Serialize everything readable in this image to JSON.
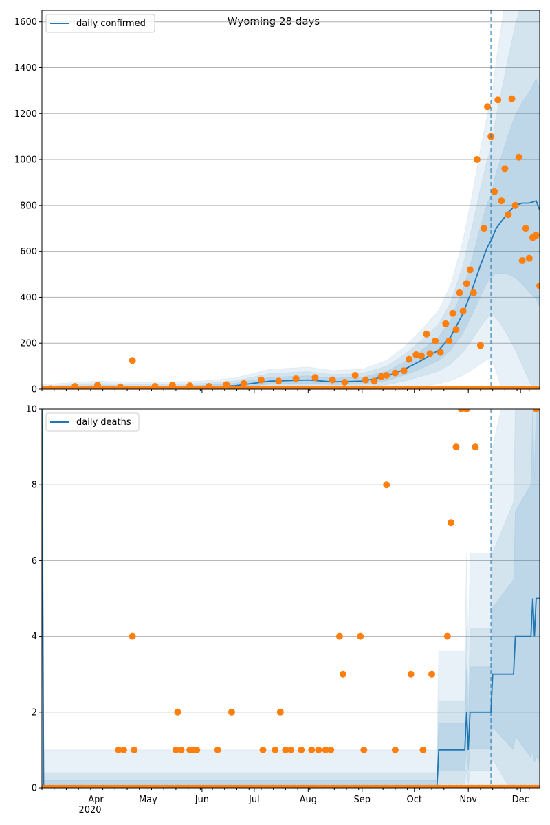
{
  "figure": {
    "title": "Wyoming 28 days",
    "year_label": "2020",
    "colors": {
      "model": "#1f77b4",
      "observed": "#ff7f0e",
      "grid": "#b0b0b0"
    }
  },
  "chart_data": [
    {
      "type": "line",
      "panel": "daily confirmed",
      "legend": [
        "daily confirmed"
      ],
      "legend_position": "top-left",
      "x_range": [
        "2020-03-01",
        "2020-12-12"
      ],
      "ylim": [
        0,
        1650
      ],
      "yticks": [
        0,
        200,
        400,
        600,
        800,
        1000,
        1200,
        1400,
        1600
      ],
      "grid": "horizontal",
      "forecast_start": "2020-11-14",
      "model_line": {
        "name": "daily confirmed",
        "x": [
          "2020-03-01",
          "2020-04-01",
          "2020-05-01",
          "2020-06-01",
          "2020-06-20",
          "2020-07-10",
          "2020-08-01",
          "2020-08-15",
          "2020-09-01",
          "2020-09-15",
          "2020-09-25",
          "2020-10-05",
          "2020-10-15",
          "2020-10-22",
          "2020-10-29",
          "2020-11-03",
          "2020-11-08",
          "2020-11-12",
          "2020-11-14",
          "2020-11-17",
          "2020-11-20",
          "2020-11-24",
          "2020-11-28",
          "2020-12-02",
          "2020-12-06",
          "2020-12-10",
          "2020-12-12"
        ],
        "y": [
          0,
          8,
          5,
          8,
          15,
          35,
          40,
          32,
          35,
          55,
          85,
          125,
          170,
          230,
          330,
          430,
          540,
          620,
          645,
          700,
          730,
          770,
          800,
          810,
          810,
          820,
          780
        ]
      },
      "observed_points": {
        "name": "observed",
        "x": [
          "2020-03-06",
          "2020-03-20",
          "2020-04-02",
          "2020-04-15",
          "2020-04-22",
          "2020-05-05",
          "2020-05-15",
          "2020-05-25",
          "2020-06-05",
          "2020-06-15",
          "2020-06-25",
          "2020-07-05",
          "2020-07-15",
          "2020-07-25",
          "2020-08-05",
          "2020-08-15",
          "2020-08-22",
          "2020-08-28",
          "2020-09-03",
          "2020-09-08",
          "2020-09-12",
          "2020-09-15",
          "2020-09-20",
          "2020-09-25",
          "2020-09-28",
          "2020-10-02",
          "2020-10-05",
          "2020-10-08",
          "2020-10-10",
          "2020-10-13",
          "2020-10-16",
          "2020-10-19",
          "2020-10-21",
          "2020-10-23",
          "2020-10-25",
          "2020-10-27",
          "2020-10-29",
          "2020-10-31",
          "2020-11-02",
          "2020-11-04",
          "2020-11-06",
          "2020-11-08",
          "2020-11-10",
          "2020-11-12",
          "2020-11-14",
          "2020-11-16",
          "2020-11-18",
          "2020-11-20",
          "2020-11-22",
          "2020-11-24",
          "2020-11-26",
          "2020-11-28",
          "2020-11-30",
          "2020-12-02",
          "2020-12-04",
          "2020-12-06",
          "2020-12-08",
          "2020-12-10",
          "2020-12-12"
        ],
        "y": [
          2,
          12,
          18,
          10,
          125,
          12,
          18,
          15,
          12,
          20,
          25,
          40,
          35,
          45,
          50,
          40,
          30,
          60,
          40,
          35,
          55,
          60,
          70,
          80,
          130,
          150,
          145,
          240,
          155,
          210,
          160,
          285,
          210,
          330,
          260,
          420,
          340,
          460,
          520,
          420,
          1000,
          190,
          700,
          1230,
          1100,
          860,
          1260,
          820,
          960,
          760,
          1265,
          800,
          1010,
          560,
          700,
          570,
          660,
          670,
          450
        ]
      }
    },
    {
      "type": "line",
      "panel": "daily deaths",
      "legend": [
        "daily deaths"
      ],
      "legend_position": "top-left",
      "x_range": [
        "2020-03-01",
        "2020-12-12"
      ],
      "ylim": [
        0,
        10
      ],
      "yticks": [
        0,
        2,
        4,
        6,
        8,
        10
      ],
      "xticks": [
        "Apr",
        "May",
        "Jun",
        "Jul",
        "Aug",
        "Sep",
        "Oct",
        "Nov",
        "Dec"
      ],
      "grid": "horizontal",
      "forecast_start": "2020-11-14",
      "model_line": {
        "name": "daily deaths",
        "x": [
          "2020-03-01",
          "2020-03-02",
          "2020-10-14",
          "2020-10-15",
          "2020-10-30",
          "2020-10-31",
          "2020-11-01",
          "2020-11-02",
          "2020-11-14",
          "2020-11-15",
          "2020-11-27",
          "2020-11-28",
          "2020-12-07",
          "2020-12-08",
          "2020-12-09",
          "2020-12-10",
          "2020-12-12"
        ],
        "y": [
          10,
          0,
          0,
          1,
          1,
          2,
          1,
          2,
          2,
          3,
          3,
          4,
          4,
          5,
          4,
          5,
          5
        ]
      },
      "observed_points": {
        "name": "observed",
        "x": [
          "2020-04-14",
          "2020-04-17",
          "2020-04-22",
          "2020-04-23",
          "2020-05-17",
          "2020-05-18",
          "2020-05-20",
          "2020-05-25",
          "2020-05-27",
          "2020-05-29",
          "2020-06-10",
          "2020-06-18",
          "2020-07-06",
          "2020-07-13",
          "2020-07-16",
          "2020-07-19",
          "2020-07-22",
          "2020-07-28",
          "2020-08-03",
          "2020-08-07",
          "2020-08-11",
          "2020-08-14",
          "2020-08-19",
          "2020-08-21",
          "2020-08-31",
          "2020-09-02",
          "2020-09-15",
          "2020-09-20",
          "2020-09-29",
          "2020-10-06",
          "2020-10-11",
          "2020-10-20",
          "2020-10-22",
          "2020-10-25",
          "2020-10-28",
          "2020-10-31",
          "2020-11-05",
          "2020-12-10"
        ],
        "y": [
          1,
          1,
          4,
          1,
          1,
          2,
          1,
          1,
          1,
          1,
          1,
          2,
          1,
          1,
          2,
          1,
          1,
          1,
          1,
          1,
          1,
          1,
          4,
          3,
          4,
          1,
          8,
          1,
          3,
          1,
          3,
          4,
          7,
          9,
          10,
          10,
          9,
          10
        ]
      }
    }
  ]
}
